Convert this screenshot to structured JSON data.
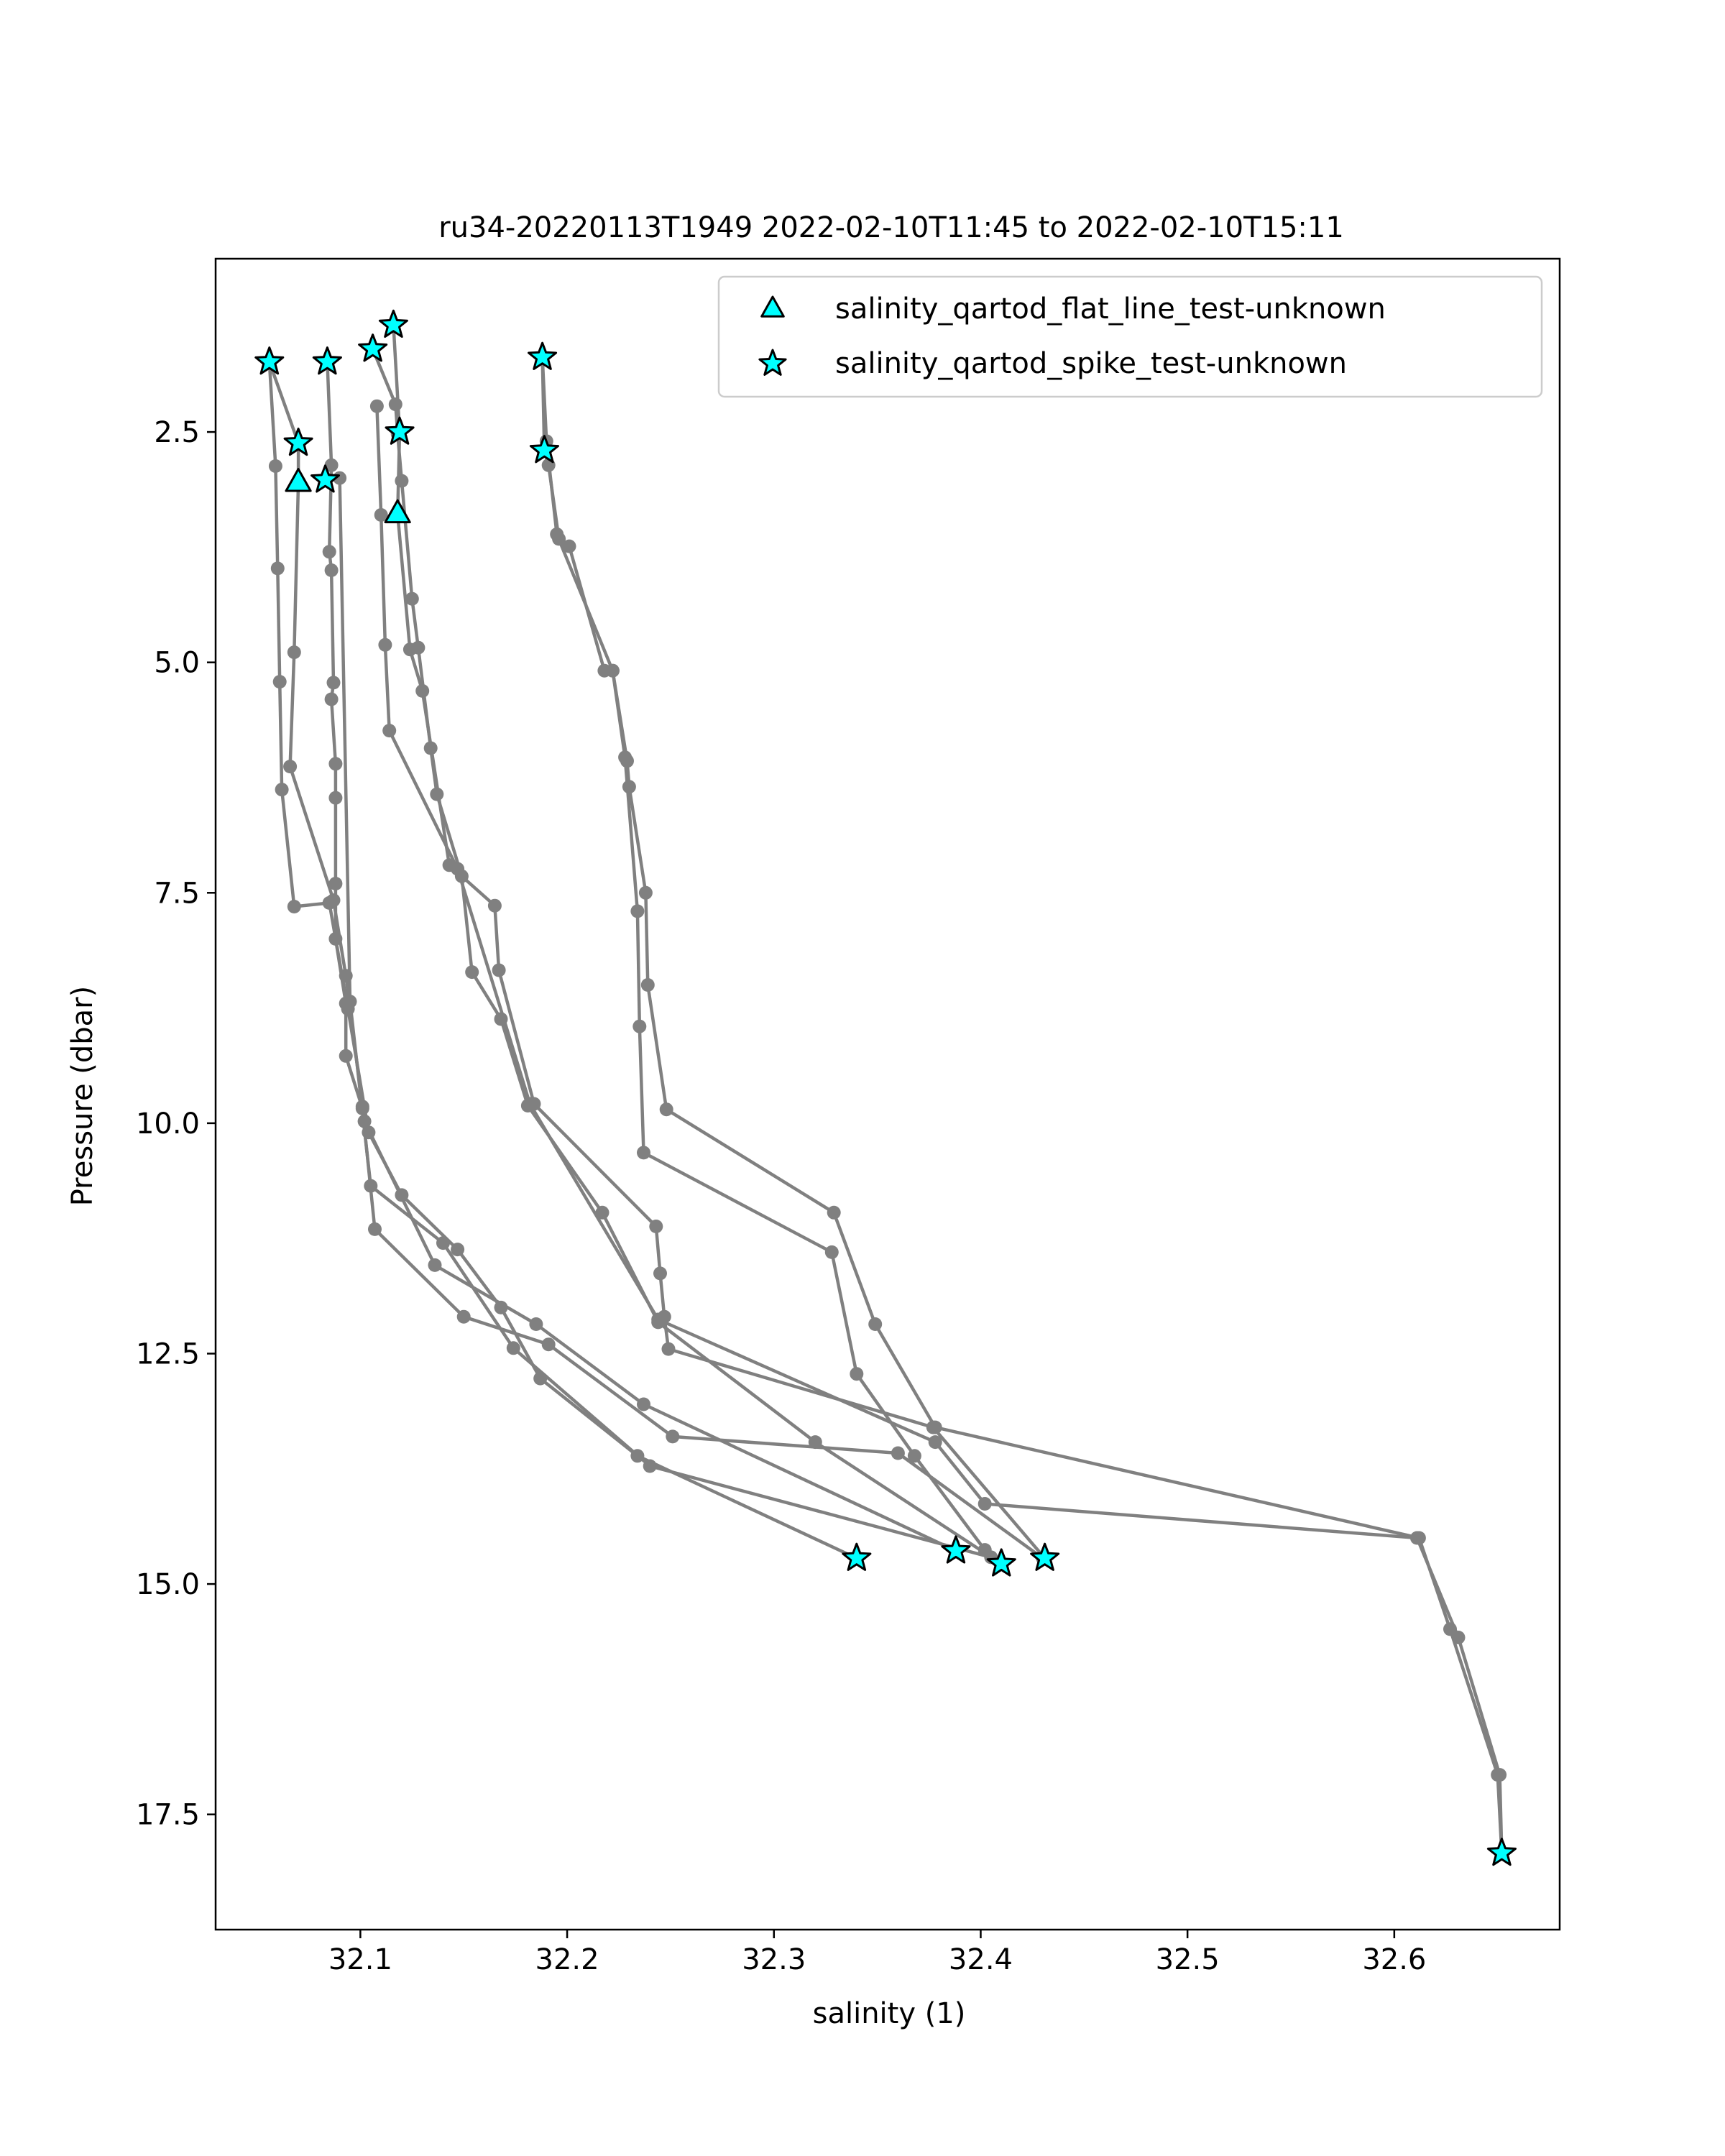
{
  "chart_data": {
    "type": "scatter",
    "title": "ru34-20220113T1949 2022-02-10T11:45 to 2022-02-10T15:11",
    "xlabel": "salinity (1)",
    "ylabel": "Pressure (dbar)",
    "xlim": [
      32.03,
      32.68
    ],
    "ylim": [
      18.75,
      0.62
    ],
    "y_inverted": true,
    "grid": false,
    "xticks": [
      32.1,
      32.2,
      32.3,
      32.4,
      32.5,
      32.6
    ],
    "xtick_labels": [
      "32.1",
      "32.2",
      "32.3",
      "32.4",
      "32.5",
      "32.6"
    ],
    "yticks": [
      2.5,
      5.0,
      7.5,
      10.0,
      12.5,
      15.0,
      17.5
    ],
    "ytick_labels": [
      "2.5",
      "5.0",
      "7.5",
      "10.0",
      "12.5",
      "15.0",
      "17.5"
    ],
    "line_color": "#808080",
    "marker_fill": "#00ffff",
    "legend_position": "upper right",
    "profiles": [
      {
        "points": [
          [
            32.056,
            1.74
          ],
          [
            32.059,
            2.87
          ],
          [
            32.06,
            3.98
          ],
          [
            32.061,
            5.21
          ],
          [
            32.062,
            6.38
          ],
          [
            32.068,
            7.65
          ],
          [
            32.085,
            7.61
          ],
          [
            32.094,
            8.76
          ],
          [
            32.104,
            10.1
          ],
          [
            32.12,
            10.78
          ],
          [
            32.147,
            11.37
          ],
          [
            32.168,
            12.0
          ],
          [
            32.187,
            12.77
          ],
          [
            32.234,
            13.61
          ],
          [
            32.34,
            14.72
          ]
        ]
      },
      {
        "points": [
          [
            32.056,
            1.74
          ],
          [
            32.07,
            2.62
          ],
          [
            32.07,
            3.05
          ],
          [
            32.068,
            4.89
          ],
          [
            32.066,
            6.13
          ],
          [
            32.087,
            7.58
          ],
          [
            32.093,
            8.4
          ],
          [
            32.101,
            9.82
          ],
          [
            32.102,
            9.98
          ],
          [
            32.136,
            11.54
          ],
          [
            32.185,
            12.18
          ],
          [
            32.237,
            13.05
          ],
          [
            32.388,
            14.64
          ]
        ]
      },
      {
        "points": [
          [
            32.084,
            1.74
          ],
          [
            32.086,
            2.86
          ],
          [
            32.085,
            3.8
          ],
          [
            32.086,
            4.0
          ],
          [
            32.087,
            5.22
          ],
          [
            32.086,
            5.4
          ],
          [
            32.088,
            6.1
          ],
          [
            32.088,
            6.47
          ],
          [
            32.088,
            7.4
          ],
          [
            32.088,
            8.0
          ],
          [
            32.093,
            8.7
          ],
          [
            32.093,
            9.27
          ],
          [
            32.101,
            9.84
          ],
          [
            32.107,
            11.15
          ],
          [
            32.15,
            12.1
          ],
          [
            32.191,
            12.4
          ],
          [
            32.251,
            13.4
          ],
          [
            32.36,
            13.58
          ],
          [
            32.43,
            14.72
          ]
        ]
      },
      {
        "points": [
          [
            32.083,
            3.02
          ],
          [
            32.09,
            3.0
          ],
          [
            32.095,
            8.68
          ],
          [
            32.105,
            10.68
          ],
          [
            32.14,
            11.3
          ],
          [
            32.174,
            12.44
          ],
          [
            32.24,
            13.72
          ],
          [
            32.405,
            14.71
          ]
        ]
      },
      {
        "points": [
          [
            32.106,
            1.6
          ],
          [
            32.117,
            2.2
          ],
          [
            32.118,
            2.52
          ],
          [
            32.12,
            3.03
          ],
          [
            32.125,
            4.31
          ],
          [
            32.128,
            4.84
          ],
          [
            32.134,
            5.93
          ],
          [
            32.137,
            6.43
          ],
          [
            32.149,
            7.32
          ],
          [
            32.154,
            8.36
          ],
          [
            32.168,
            8.87
          ],
          [
            32.181,
            9.81
          ],
          [
            32.217,
            10.97
          ],
          [
            32.244,
            12.16
          ],
          [
            32.32,
            13.46
          ],
          [
            32.41,
            14.78
          ]
        ]
      },
      {
        "points": [
          [
            32.116,
            1.34
          ],
          [
            32.119,
            2.5
          ],
          [
            32.118,
            3.39
          ],
          [
            32.124,
            4.86
          ],
          [
            32.13,
            5.31
          ],
          [
            32.143,
            7.2
          ],
          [
            32.165,
            7.64
          ],
          [
            32.167,
            8.34
          ],
          [
            32.184,
            9.79
          ],
          [
            32.243,
            11.12
          ],
          [
            32.245,
            11.63
          ],
          [
            32.247,
            12.1
          ],
          [
            32.249,
            12.45
          ],
          [
            32.377,
            13.3
          ],
          [
            32.431,
            14.72
          ]
        ]
      },
      {
        "points": [
          [
            32.108,
            2.22
          ],
          [
            32.11,
            3.4
          ],
          [
            32.112,
            4.81
          ],
          [
            32.114,
            5.74
          ],
          [
            32.147,
            7.24
          ],
          [
            32.182,
            9.79
          ],
          [
            32.244,
            12.13
          ],
          [
            32.378,
            13.46
          ],
          [
            32.402,
            14.13
          ],
          [
            32.611,
            14.5
          ],
          [
            32.631,
            15.58
          ],
          [
            32.651,
            17.07
          ],
          [
            32.652,
            17.92
          ]
        ]
      },
      {
        "points": [
          [
            32.188,
            1.69
          ],
          [
            32.189,
            2.7
          ],
          [
            32.191,
            2.86
          ],
          [
            32.196,
            3.66
          ],
          [
            32.201,
            3.74
          ],
          [
            32.218,
            5.09
          ],
          [
            32.222,
            5.09
          ],
          [
            32.229,
            6.07
          ],
          [
            32.23,
            6.35
          ],
          [
            32.238,
            7.5
          ],
          [
            32.239,
            8.5
          ],
          [
            32.248,
            9.85
          ],
          [
            32.329,
            10.97
          ],
          [
            32.349,
            12.18
          ],
          [
            32.378,
            13.3
          ],
          [
            32.612,
            14.5
          ],
          [
            32.627,
            15.49
          ],
          [
            32.65,
            17.07
          ],
          [
            32.652,
            17.92
          ]
        ]
      },
      {
        "points": [
          [
            32.188,
            1.69
          ],
          [
            32.19,
            2.6
          ],
          [
            32.195,
            3.61
          ],
          [
            32.222,
            5.09
          ],
          [
            32.228,
            6.03
          ],
          [
            32.234,
            7.7
          ],
          [
            32.235,
            8.95
          ],
          [
            32.237,
            10.32
          ],
          [
            32.328,
            11.4
          ],
          [
            32.34,
            12.72
          ],
          [
            32.368,
            13.61
          ],
          [
            32.402,
            14.63
          ]
        ]
      }
    ],
    "flat_line_points": [
      [
        32.07,
        3.05
      ],
      [
        32.118,
        3.39
      ]
    ],
    "spike_points": [
      [
        32.056,
        1.74
      ],
      [
        32.084,
        1.74
      ],
      [
        32.106,
        1.6
      ],
      [
        32.116,
        1.34
      ],
      [
        32.188,
        1.69
      ],
      [
        32.07,
        2.62
      ],
      [
        32.083,
        3.02
      ],
      [
        32.119,
        2.5
      ],
      [
        32.189,
        2.7
      ],
      [
        32.34,
        14.72
      ],
      [
        32.388,
        14.64
      ],
      [
        32.41,
        14.78
      ],
      [
        32.431,
        14.72
      ],
      [
        32.652,
        17.92
      ]
    ],
    "legend": [
      {
        "label": "salinity_qartod_flat_line_test-unknown",
        "marker": "triangle"
      },
      {
        "label": "salinity_qartod_spike_test-unknown",
        "marker": "star"
      }
    ]
  }
}
